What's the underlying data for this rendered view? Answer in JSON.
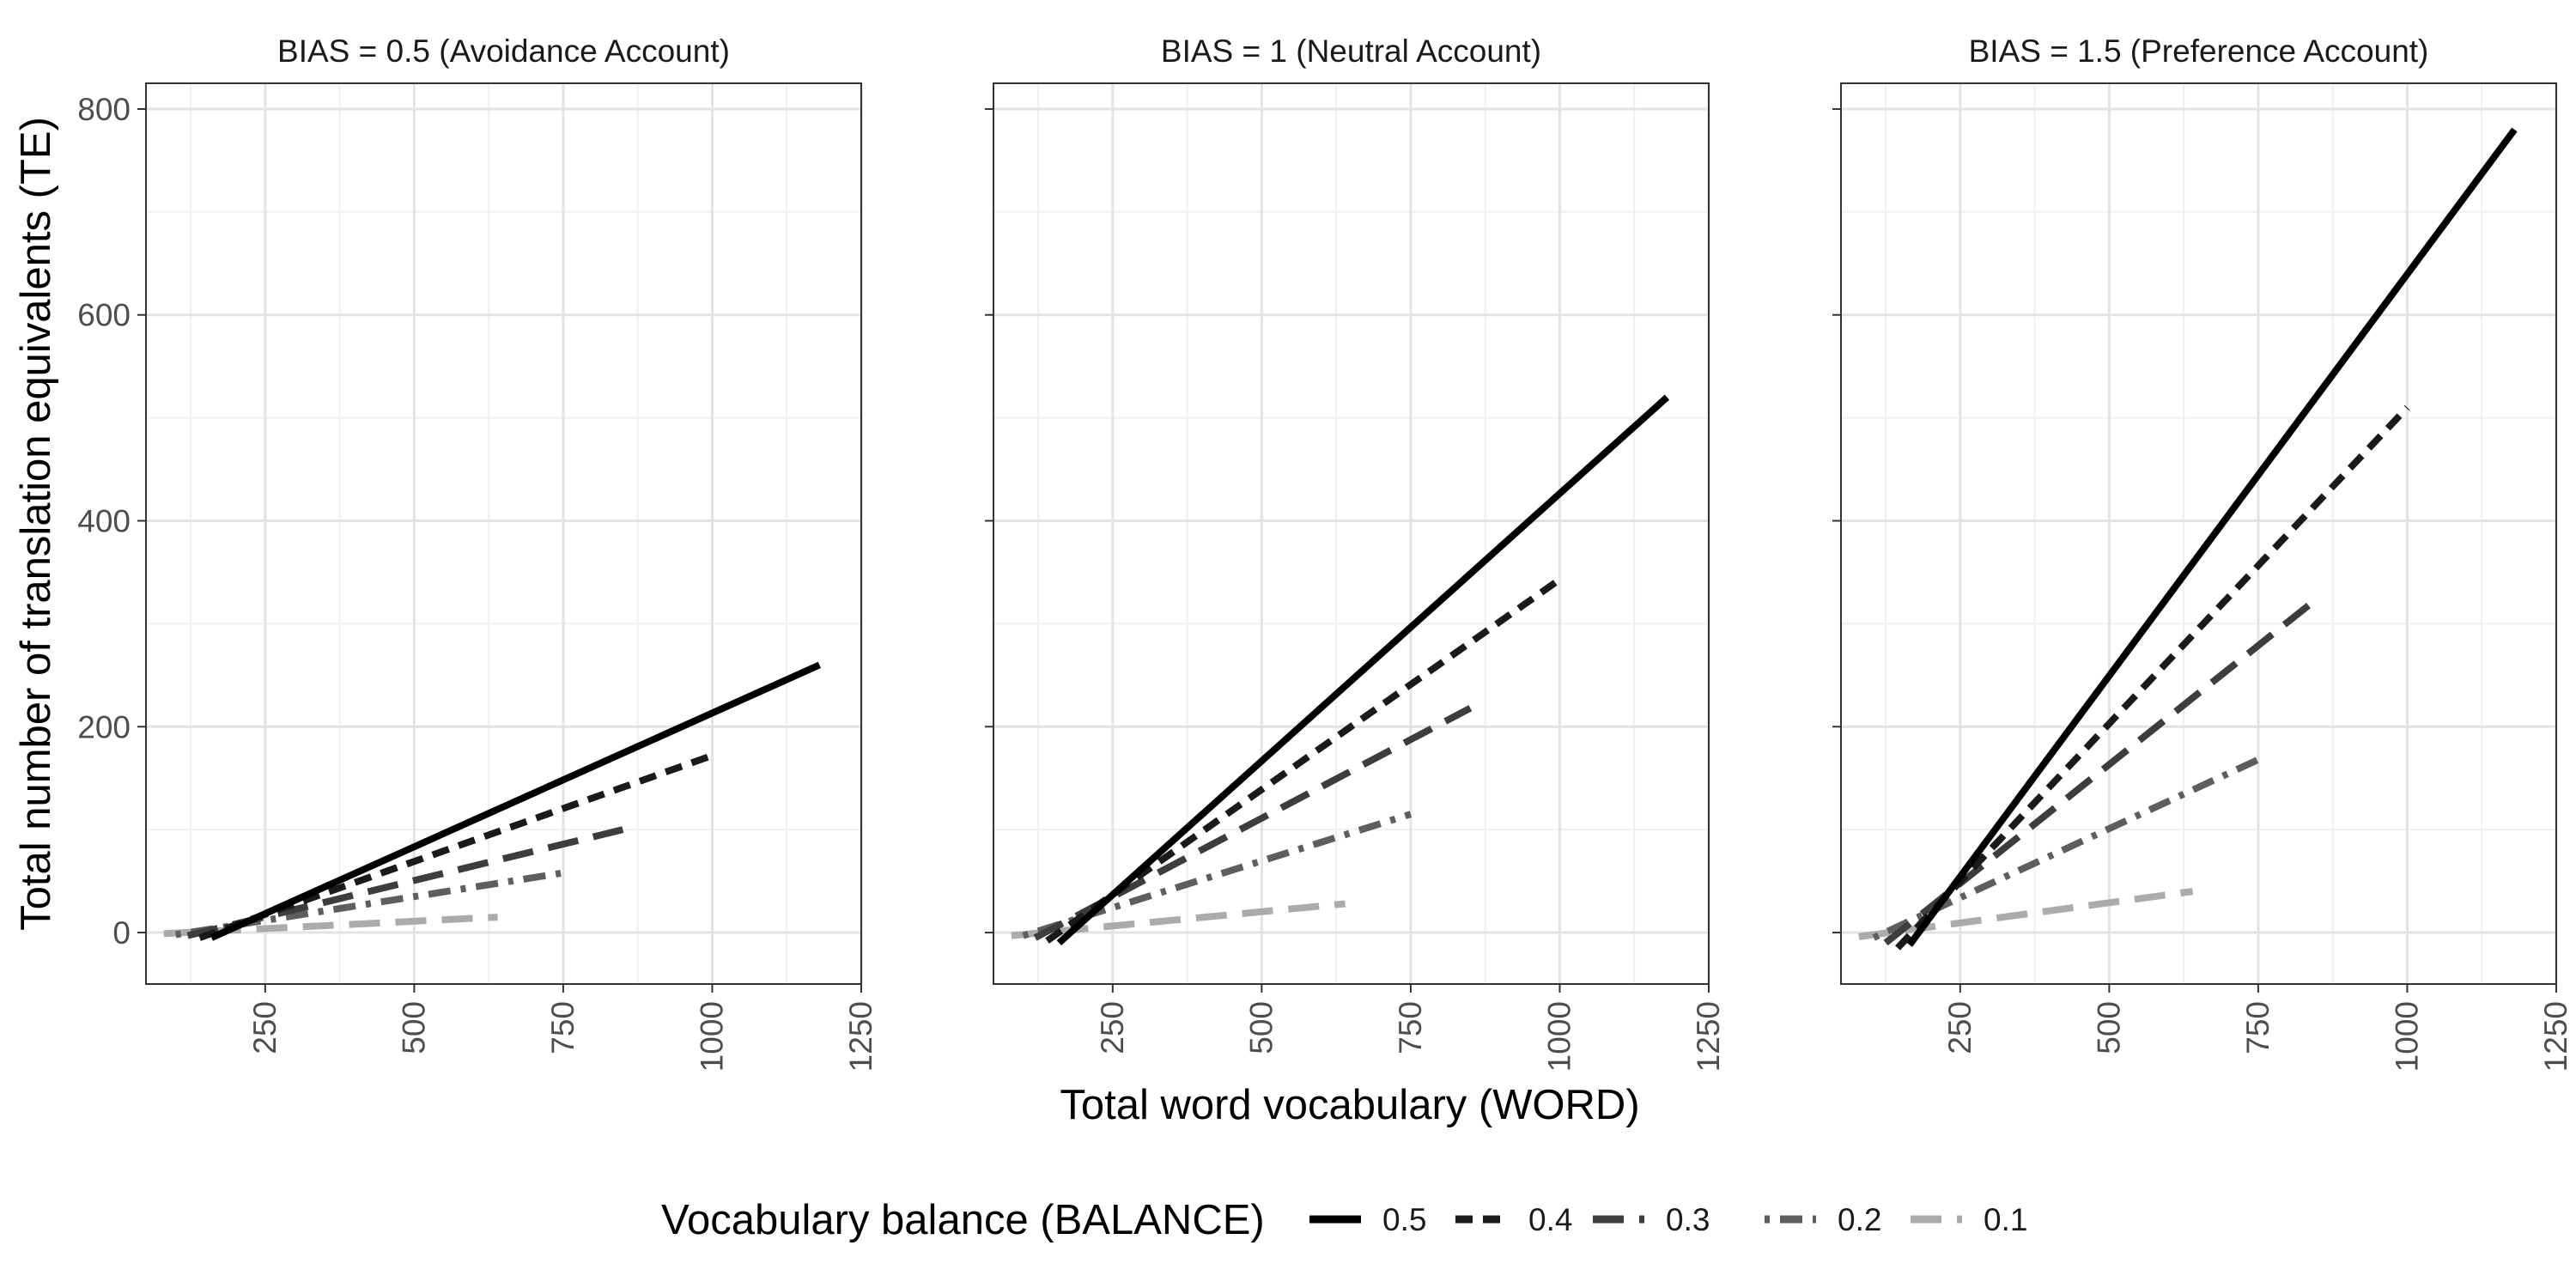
{
  "chart_data": {
    "type": "line",
    "ylabel": "Total number of translation equivalents (TE)",
    "xlabel": "Total word vocabulary (WORD)",
    "xlim": [
      50,
      1250
    ],
    "ylim": [
      -50,
      825
    ],
    "x_ticks": [
      250,
      500,
      750,
      1000,
      1250
    ],
    "y_ticks": [
      0,
      200,
      400,
      600,
      800
    ],
    "x_tick_labels": [
      "250",
      "500",
      "750",
      "1000",
      "1250"
    ],
    "y_tick_labels": [
      "0",
      "200",
      "400",
      "600",
      "800"
    ],
    "grid": true,
    "legend": {
      "title": "Vocabulary balance (BALANCE)",
      "placement": "bottom",
      "entries": [
        {
          "label": "0.5",
          "color": "#000000",
          "dash": "solid"
        },
        {
          "label": "0.4",
          "color": "#1a1a1a",
          "dash": "dashed"
        },
        {
          "label": "0.3",
          "color": "#3d3d3d",
          "dash": "longdash"
        },
        {
          "label": "0.2",
          "color": "#5e5e5e",
          "dash": "dotdash"
        },
        {
          "label": "0.1",
          "color": "#ababab",
          "dash": "longdash"
        }
      ]
    },
    "panels": [
      {
        "title": "BIAS = 0.5 (Avoidance Account)",
        "series": [
          {
            "name": "0.5",
            "x": [
              160,
              1180
            ],
            "y": [
              -5,
              260
            ]
          },
          {
            "name": "0.4",
            "x": [
              140,
              1000
            ],
            "y": [
              -5,
              172
            ]
          },
          {
            "name": "0.3",
            "x": [
              120,
              850
            ],
            "y": [
              -3,
              100
            ]
          },
          {
            "name": "0.2",
            "x": [
              100,
              750
            ],
            "y": [
              -2,
              58
            ]
          },
          {
            "name": "0.1",
            "x": [
              80,
              640
            ],
            "y": [
              -1,
              15
            ]
          }
        ]
      },
      {
        "title": "BIAS = 1 (Neutral Account)",
        "series": [
          {
            "name": "0.5",
            "x": [
              160,
              1180
            ],
            "y": [
              -10,
              520
            ]
          },
          {
            "name": "0.4",
            "x": [
              140,
              1000
            ],
            "y": [
              -8,
              343
            ]
          },
          {
            "name": "0.3",
            "x": [
              120,
              850
            ],
            "y": [
              -5,
              218
            ]
          },
          {
            "name": "0.2",
            "x": [
              100,
              750
            ],
            "y": [
              -3,
              115
            ]
          },
          {
            "name": "0.1",
            "x": [
              80,
              640
            ],
            "y": [
              -3,
              28
            ]
          }
        ]
      },
      {
        "title": "BIAS = 1.5 (Preference Account)",
        "series": [
          {
            "name": "0.5",
            "x": [
              165,
              1180
            ],
            "y": [
              -12,
              780
            ]
          },
          {
            "name": "0.4",
            "x": [
              145,
              1000
            ],
            "y": [
              -15,
              510
            ]
          },
          {
            "name": "0.3",
            "x": [
              125,
              850
            ],
            "y": [
              -10,
              325
            ]
          },
          {
            "name": "0.2",
            "x": [
              105,
              750
            ],
            "y": [
              -5,
              168
            ]
          },
          {
            "name": "0.1",
            "x": [
              80,
              640
            ],
            "y": [
              -4,
              40
            ]
          }
        ]
      }
    ]
  }
}
